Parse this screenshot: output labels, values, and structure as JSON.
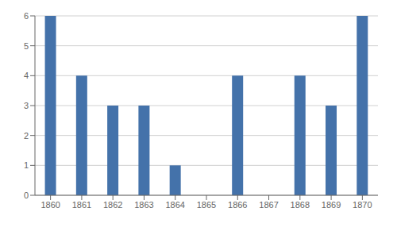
{
  "chart_data": {
    "type": "bar",
    "categories": [
      "1860",
      "1861",
      "1862",
      "1863",
      "1864",
      "1865",
      "1866",
      "1867",
      "1868",
      "1869",
      "1870"
    ],
    "values": [
      6,
      4,
      3,
      3,
      1,
      0,
      4,
      0,
      4,
      3,
      6
    ],
    "color": "#4472AA",
    "ylim": [
      0,
      6
    ],
    "yticks": [
      0,
      1,
      2,
      3,
      4,
      5,
      6
    ],
    "grid": true
  }
}
